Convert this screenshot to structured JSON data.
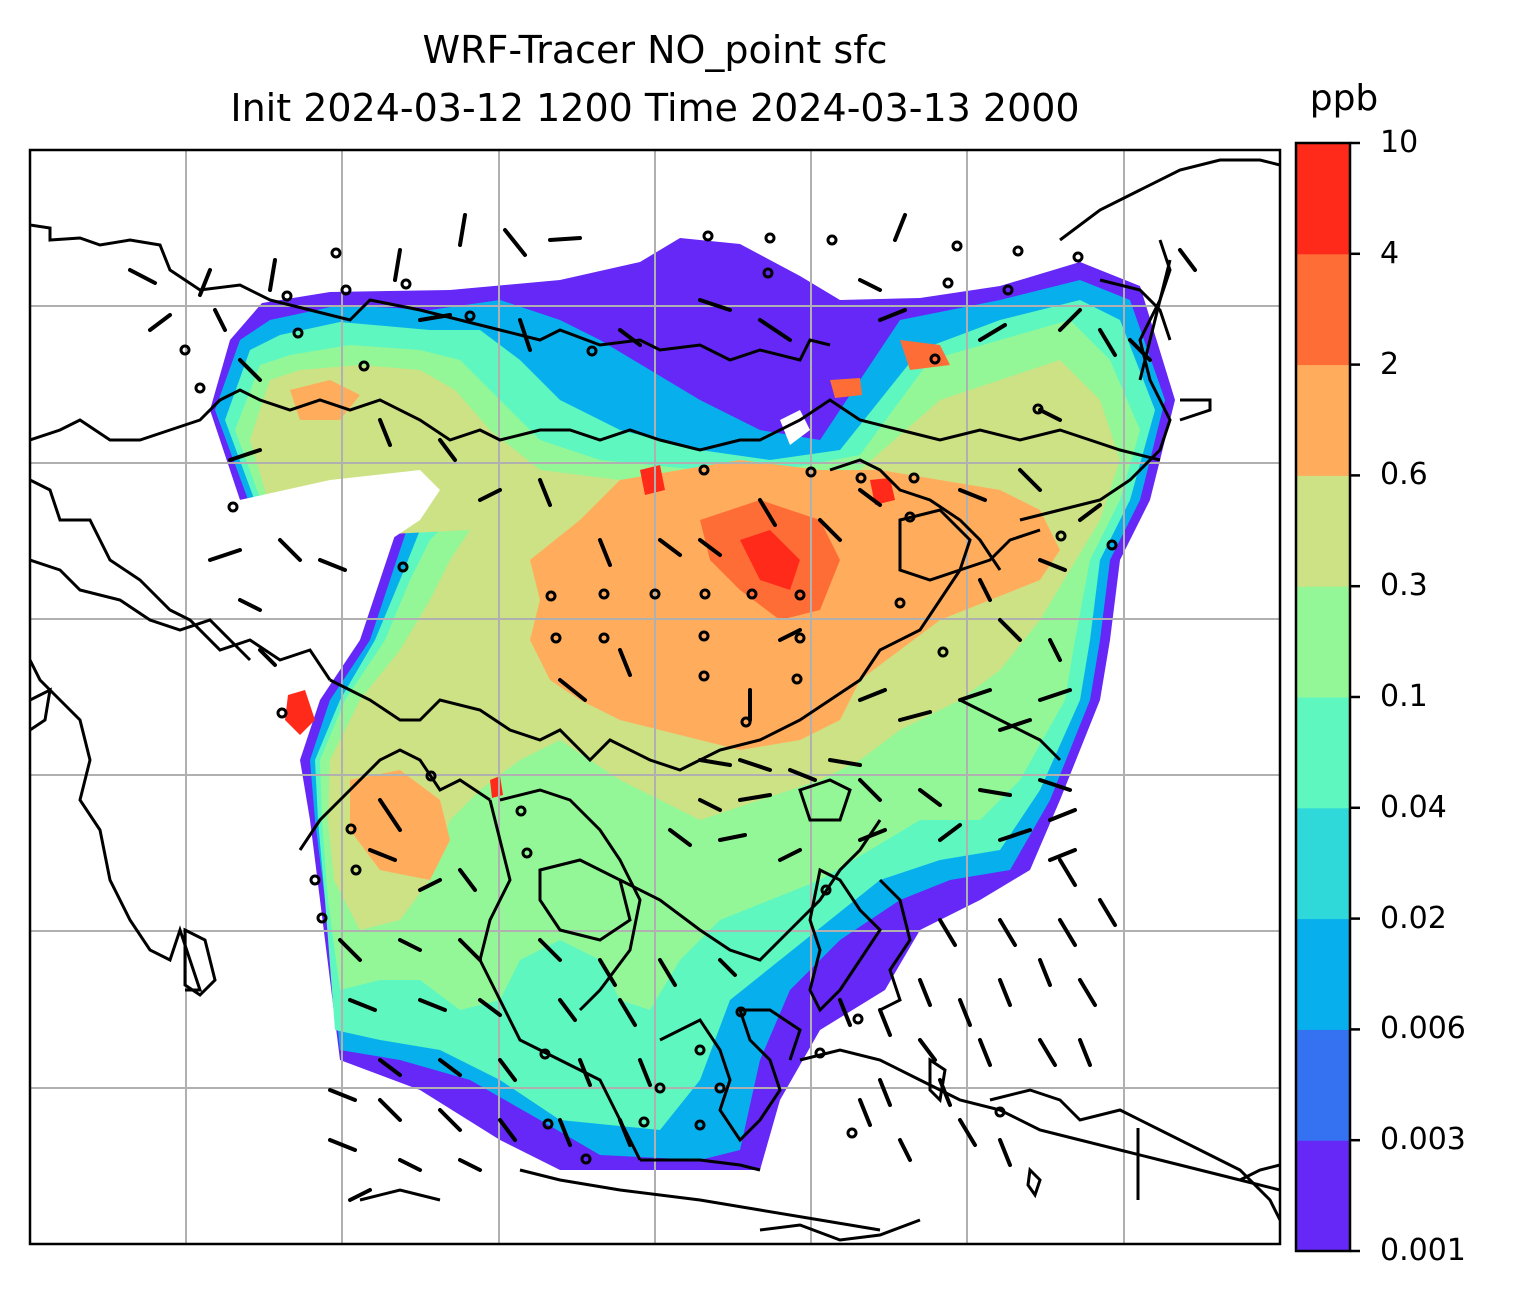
{
  "title": {
    "line1": "WRF-Tracer NO_point sfc",
    "line2": "Init 2024-03-12 1200 Time 2024-03-13 2000"
  },
  "colorbar": {
    "unit": "ppb",
    "levels": [
      "0.001",
      "0.003",
      "0.006",
      "0.02",
      "0.04",
      "0.1",
      "0.3",
      "0.6",
      "2",
      "4",
      "10"
    ],
    "colors": [
      "#6528f7",
      "#3572f2",
      "#07b0ec",
      "#2fd9d9",
      "#5ef7c0",
      "#94f797",
      "#cde185",
      "#ffad5c",
      "#ff6d36",
      "#ff2a1a"
    ]
  },
  "map": {
    "region": "East Asia / Southeast Asia",
    "gridlines": true,
    "land_color": "#ffffff",
    "coastline_color": "#000000",
    "wind_barbs": true,
    "calm_markers": true
  }
}
